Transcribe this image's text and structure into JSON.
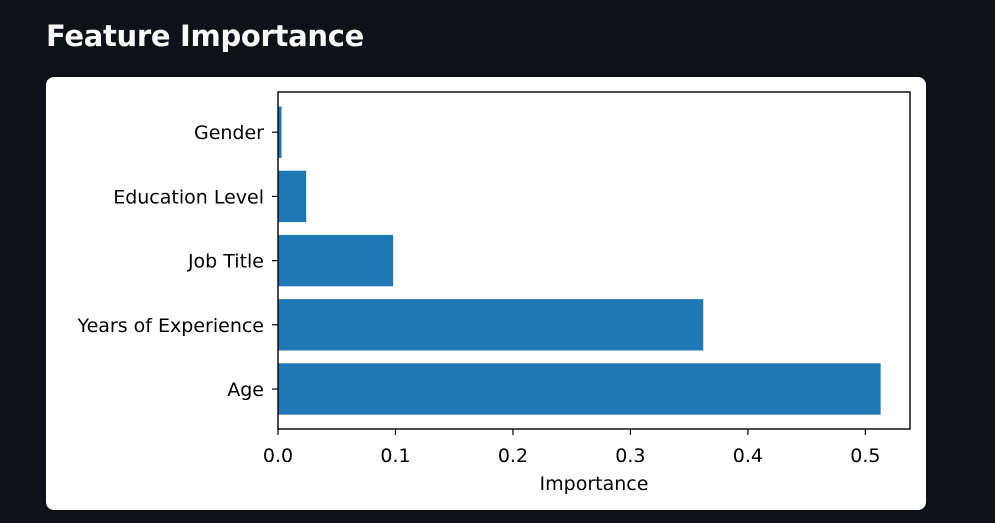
{
  "page": {
    "title": "Feature Importance"
  },
  "colors": {
    "background": "#0e1117",
    "card": "#ffffff",
    "bar": "#1f77b4",
    "title": "#fafafa"
  },
  "chart_data": {
    "type": "bar",
    "orientation": "horizontal",
    "title": "",
    "xlabel": "Importance",
    "ylabel": "",
    "categories": [
      "Age",
      "Years of Experience",
      "Job Title",
      "Education Level",
      "Gender"
    ],
    "values": [
      0.513,
      0.362,
      0.098,
      0.024,
      0.003
    ],
    "xlim": [
      0,
      0.538
    ],
    "xticks": [
      0.0,
      0.1,
      0.2,
      0.3,
      0.4,
      0.5
    ],
    "xtick_labels": [
      "0.0",
      "0.1",
      "0.2",
      "0.3",
      "0.4",
      "0.5"
    ],
    "grid": false,
    "legend": "none"
  }
}
